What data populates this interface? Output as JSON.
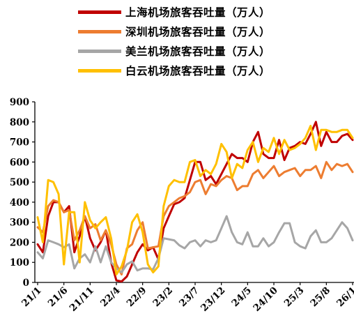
{
  "chart_data": {
    "type": "line",
    "ylim": [
      0,
      900
    ],
    "y_ticks": [
      0,
      100,
      200,
      300,
      400,
      500,
      600,
      700,
      800,
      900
    ],
    "x_tick_labels": [
      "21/1",
      "21/6",
      "21/11",
      "22/4",
      "22/9",
      "23/2",
      "23/7",
      "23/12",
      "24/5",
      "24/10",
      "25/3",
      "25/8",
      "26/1"
    ],
    "x_tick_month_index": [
      0,
      5,
      10,
      15,
      20,
      25,
      30,
      35,
      40,
      45,
      50,
      55,
      60
    ],
    "grid": false,
    "legend_position": "top",
    "series": [
      {
        "name": "上海机场旅客吞吐量（万人）",
        "color": "#c00000",
        "values": [
          190,
          150,
          330,
          400,
          400,
          350,
          380,
          150,
          230,
          330,
          220,
          160,
          200,
          260,
          100,
          10,
          5,
          30,
          90,
          150,
          190,
          160,
          175,
          115,
          270,
          330,
          390,
          400,
          420,
          510,
          600,
          600,
          510,
          530,
          490,
          540,
          590,
          640,
          620,
          620,
          600,
          700,
          750,
          640,
          620,
          620,
          710,
          610,
          670,
          680,
          700,
          690,
          740,
          800,
          680,
          750,
          700,
          700,
          730,
          740,
          710
        ]
      },
      {
        "name": "深圳机场旅客吞吐量（万人）",
        "color": "#ed7d31",
        "values": [
          275,
          250,
          380,
          410,
          400,
          350,
          360,
          210,
          260,
          330,
          270,
          290,
          210,
          260,
          190,
          90,
          40,
          170,
          190,
          260,
          300,
          170,
          175,
          180,
          330,
          380,
          400,
          420,
          430,
          450,
          500,
          510,
          440,
          490,
          480,
          510,
          530,
          520,
          460,
          480,
          480,
          540,
          560,
          520,
          550,
          580,
          530,
          550,
          560,
          570,
          530,
          560,
          560,
          580,
          520,
          600,
          560,
          590,
          580,
          590,
          550
        ]
      },
      {
        "name": "美兰机场旅客吞吐量（万人）",
        "color": "#a6a6a6",
        "values": [
          150,
          120,
          210,
          200,
          190,
          175,
          190,
          70,
          120,
          140,
          100,
          180,
          100,
          180,
          100,
          70,
          50,
          90,
          105,
          60,
          70,
          70,
          65,
          120,
          220,
          215,
          210,
          185,
          170,
          200,
          210,
          180,
          210,
          200,
          210,
          270,
          330,
          250,
          200,
          190,
          250,
          180,
          180,
          220,
          180,
          200,
          250,
          295,
          295,
          200,
          180,
          170,
          230,
          260,
          200,
          200,
          220,
          260,
          300,
          270,
          210
        ]
      },
      {
        "name": "白云机场旅客吞吐量（万人）",
        "color": "#ffc000",
        "values": [
          325,
          200,
          510,
          500,
          440,
          90,
          350,
          350,
          100,
          400,
          310,
          270,
          300,
          325,
          220,
          40,
          80,
          160,
          300,
          340,
          250,
          90,
          50,
          80,
          380,
          480,
          510,
          500,
          500,
          600,
          610,
          530,
          560,
          540,
          590,
          690,
          650,
          520,
          590,
          570,
          660,
          700,
          600,
          670,
          650,
          720,
          640,
          710,
          660,
          670,
          690,
          720,
          780,
          660,
          760,
          760,
          750,
          750,
          760,
          760,
          720
        ]
      }
    ]
  }
}
